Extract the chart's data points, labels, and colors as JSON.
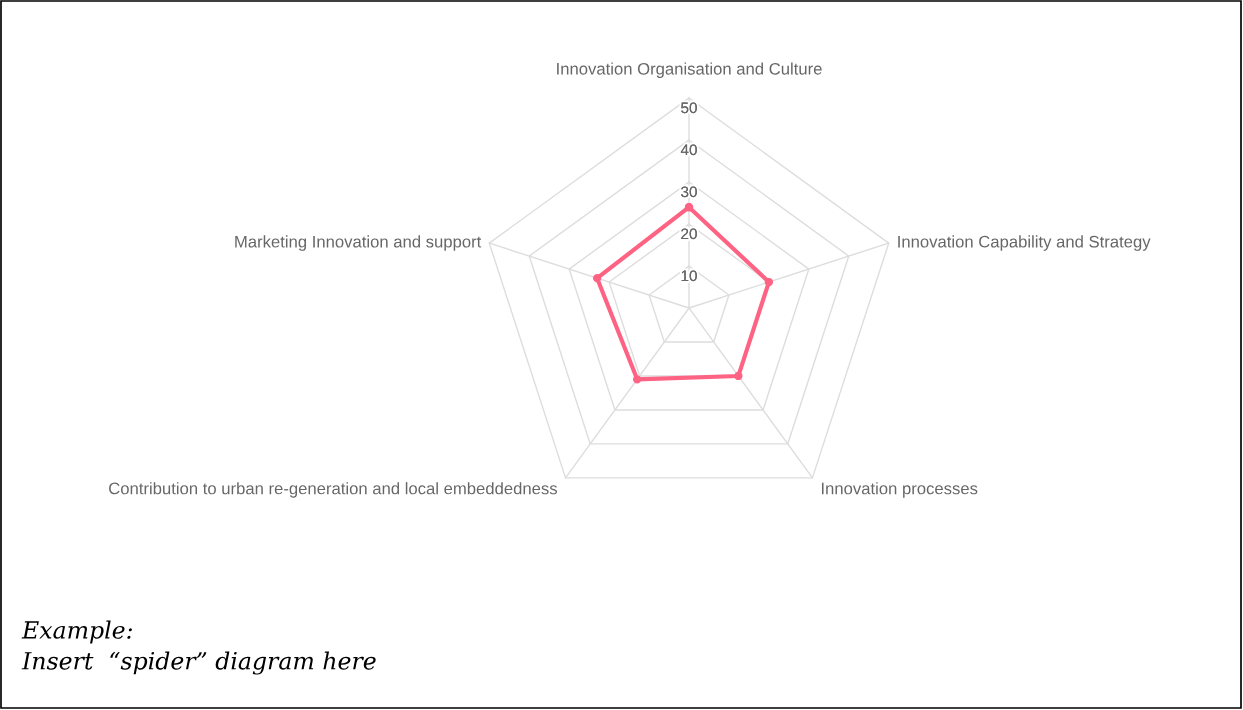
{
  "chart_data": {
    "type": "radar",
    "categories": [
      "Innovation Organisation and Culture",
      "Innovation Capability and Strategy",
      "Innovation processes",
      "Contribution to urban re-generation and local embeddedness",
      "Marketing Innovation and support"
    ],
    "series": [
      {
        "color": "#ff6384",
        "values": [
          24,
          20,
          20,
          21,
          23
        ]
      }
    ],
    "ylim": [
      0,
      50
    ],
    "yticks": [
      10,
      20,
      30,
      40,
      50
    ],
    "grid": true,
    "marker": "circle",
    "annotations": [
      "Example:",
      "Insert  “spider” diagram here"
    ]
  }
}
